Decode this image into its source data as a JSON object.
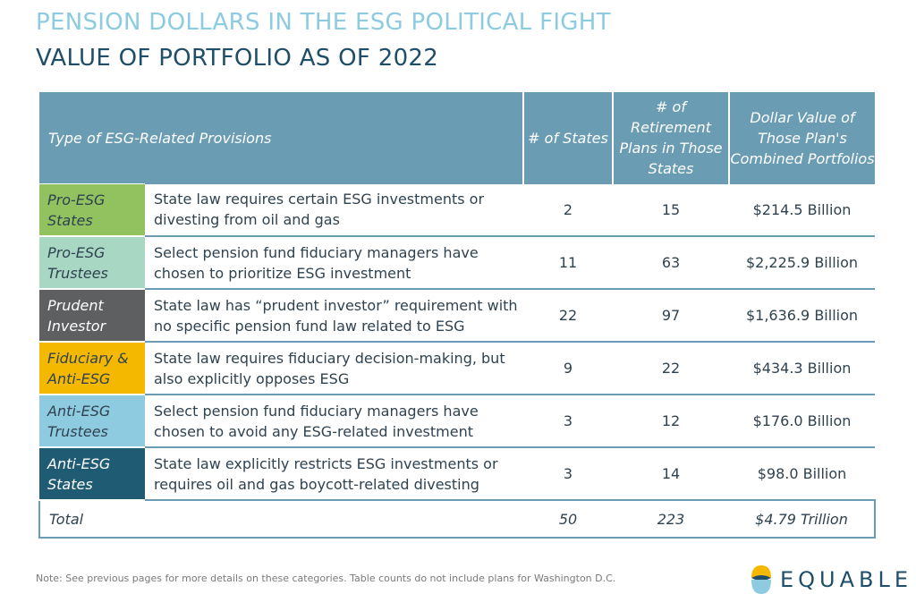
{
  "title": "PENSION DOLLARS IN THE ESG POLITICAL FIGHT",
  "subtitle": "VALUE OF PORTFOLIO AS OF 2022",
  "table": {
    "headers": {
      "type": "Type of ESG-Related Provisions",
      "states": "# of States",
      "plans": "# of Retirement Plans in Those States",
      "value": "Dollar Value of Those Plan's Combined Portfolios"
    },
    "rows": [
      {
        "category": "Pro-ESG States",
        "color": "#92c25f",
        "text_color": "#2f4250",
        "description": "State law requires certain ESG investments or divesting from oil and gas",
        "states": "2",
        "plans": "15",
        "value": "$214.5 Billion"
      },
      {
        "category": "Pro-ESG Trustees",
        "color": "#a8d8c4",
        "text_color": "#2f4250",
        "description": "Select pension fund fiduciary managers have chosen to prioritize ESG investment",
        "states": "11",
        "plans": "63",
        "value": "$2,225.9 Billion"
      },
      {
        "category": "Prudent Investor",
        "color": "#5e5f61",
        "text_color": "#ffffff",
        "description": "State law has “prudent investor” requirement with no specific pension fund law related to ESG",
        "states": "22",
        "plans": "97",
        "value": "$1,636.9 Billion"
      },
      {
        "category": "Fiduciary & Anti-ESG",
        "color": "#f5b800",
        "text_color": "#2f4250",
        "description": "State law requires fiduciary decision-making, but also explicitly opposes ESG",
        "states": "9",
        "plans": "22",
        "value": "$434.3 Billion"
      },
      {
        "category": "Anti-ESG Trustees",
        "color": "#8fcbe0",
        "text_color": "#2f4250",
        "description": "Select pension fund fiduciary managers have chosen to avoid any ESG-related investment",
        "states": "3",
        "plans": "12",
        "value": "$176.0 Billion"
      },
      {
        "category": "Anti-ESG States",
        "color": "#1f5b73",
        "text_color": "#ffffff",
        "description": "State law explicitly restricts ESG investments or requires oil and gas boycott-related divesting",
        "states": "3",
        "plans": "14",
        "value": "$98.0 Billion"
      }
    ],
    "total": {
      "label": "Total",
      "states": "50",
      "plans": "223",
      "value": "$4.79 Trillion"
    }
  },
  "footnote": "Note: See previous pages for more details on these categories. Table counts do not include plans for Washington D.C.",
  "logo": {
    "text": "EQUABLE",
    "icon": "equable-logo-icon"
  },
  "colors": {
    "header": "#6a9db3",
    "title_light": "#8ccbe0",
    "title_dark": "#1f4e68"
  }
}
